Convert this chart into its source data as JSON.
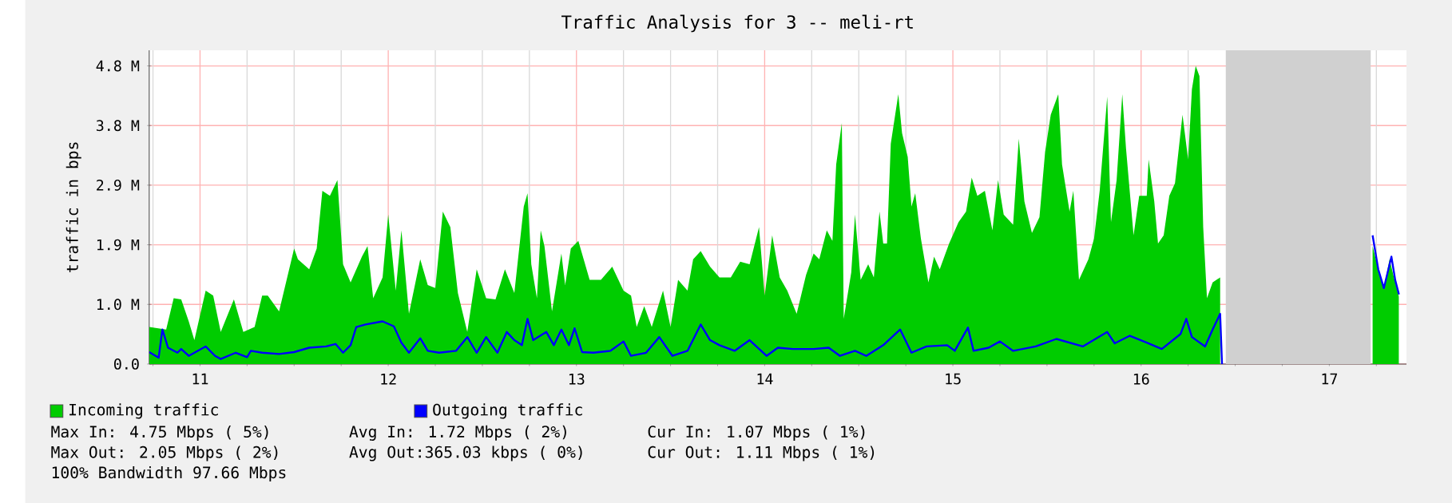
{
  "chart_data": {
    "type": "area",
    "title": "Traffic Analysis for 3 -- meli-rt",
    "ylabel": "traffic in bps",
    "xlim": [
      10.73,
      17.41
    ],
    "ylim": [
      0,
      5
    ],
    "xticks": [
      {
        "value": 10.75,
        "label": null
      },
      11,
      {
        "value": 11.25,
        "label": null
      },
      {
        "value": 11.5,
        "label": null
      },
      {
        "value": 11.75,
        "label": null
      },
      12,
      {
        "value": 12.25,
        "label": null
      },
      {
        "value": 12.5,
        "label": null
      },
      {
        "value": 12.75,
        "label": null
      },
      13,
      {
        "value": 13.25,
        "label": null
      },
      {
        "value": 13.5,
        "label": null
      },
      {
        "value": 13.75,
        "label": null
      },
      14,
      {
        "value": 14.25,
        "label": null
      },
      {
        "value": 14.5,
        "label": null
      },
      {
        "value": 14.75,
        "label": null
      },
      15,
      {
        "value": 15.25,
        "label": null
      },
      {
        "value": 15.5,
        "label": null
      },
      {
        "value": 15.75,
        "label": null
      },
      16,
      {
        "value": 16.25,
        "label": null
      },
      {
        "value": 16.5,
        "label": null
      },
      {
        "value": 16.75,
        "label": null
      },
      17,
      {
        "value": 17.25,
        "label": null
      }
    ],
    "yticks": [
      {
        "value": 0,
        "label": "0.0"
      },
      {
        "value": 0.95,
        "label": "1.0 M"
      },
      {
        "value": 1.9,
        "label": "1.9 M"
      },
      {
        "value": 2.85,
        "label": "2.9 M"
      },
      {
        "value": 3.8,
        "label": "3.8 M"
      },
      {
        "value": 4.75,
        "label": "4.8 M"
      }
    ],
    "grid": true,
    "legend": "bottom",
    "bands": [
      {
        "axis": "x",
        "from": 16.45,
        "to": 17.22,
        "color": "#d0d0d0"
      }
    ],
    "series": [
      {
        "name": "Incoming traffic",
        "color": "#00cc00",
        "x": [
          10.73,
          10.82,
          10.86,
          10.9,
          10.94,
          10.97,
          11.03,
          11.07,
          11.11,
          11.18,
          11.23,
          11.29,
          11.33,
          11.36,
          11.42,
          11.5,
          11.52,
          11.58,
          11.62,
          11.65,
          11.69,
          11.73,
          11.76,
          11.8,
          11.86,
          11.89,
          11.92,
          11.97,
          12.0,
          12.04,
          12.07,
          12.11,
          12.17,
          12.21,
          12.25,
          12.29,
          12.33,
          12.37,
          12.42,
          12.47,
          12.52,
          12.57,
          12.62,
          12.67,
          12.72,
          12.74,
          12.76,
          12.79,
          12.81,
          12.83,
          12.87,
          12.92,
          12.94,
          12.97,
          13.01,
          13.07,
          13.13,
          13.19,
          13.25,
          13.29,
          13.32,
          13.36,
          13.4,
          13.46,
          13.5,
          13.54,
          13.59,
          13.62,
          13.66,
          13.71,
          13.76,
          13.82,
          13.87,
          13.92,
          13.97,
          14.0,
          14.04,
          14.08,
          14.12,
          14.17,
          14.22,
          14.26,
          14.29,
          14.33,
          14.36,
          14.38,
          14.41,
          14.42,
          14.46,
          14.48,
          14.51,
          14.55,
          14.58,
          14.61,
          14.63,
          14.65,
          14.67,
          14.71,
          14.73,
          14.76,
          14.78,
          14.8,
          14.83,
          14.87,
          14.9,
          14.93,
          14.98,
          15.03,
          15.07,
          15.1,
          15.13,
          15.17,
          15.21,
          15.24,
          15.27,
          15.32,
          15.35,
          15.38,
          15.42,
          15.46,
          15.49,
          15.52,
          15.56,
          15.58,
          15.62,
          15.64,
          15.67,
          15.72,
          15.75,
          15.78,
          15.82,
          15.84,
          15.87,
          15.9,
          15.92,
          15.96,
          15.99,
          16.03,
          16.04,
          16.07,
          16.09,
          16.12,
          16.15,
          16.18,
          16.22,
          16.25,
          16.27,
          16.29,
          16.31,
          16.33,
          16.35,
          16.38,
          16.42,
          16.44,
          17.23,
          17.26,
          17.29,
          17.32,
          17.34,
          17.37
        ],
        "values": [
          0.59,
          0.55,
          1.05,
          1.03,
          0.68,
          0.38,
          1.17,
          1.09,
          0.51,
          1.03,
          0.51,
          0.59,
          1.09,
          1.09,
          0.84,
          1.84,
          1.67,
          1.51,
          1.84,
          2.76,
          2.68,
          2.93,
          1.59,
          1.3,
          1.71,
          1.88,
          1.05,
          1.38,
          2.38,
          1.17,
          2.13,
          0.8,
          1.67,
          1.26,
          1.21,
          2.43,
          2.18,
          1.13,
          0.51,
          1.51,
          1.05,
          1.03,
          1.51,
          1.13,
          2.51,
          2.72,
          1.59,
          1.05,
          2.13,
          1.88,
          0.84,
          1.76,
          1.26,
          1.84,
          1.96,
          1.34,
          1.34,
          1.55,
          1.17,
          1.09,
          0.59,
          0.92,
          0.59,
          1.17,
          0.59,
          1.34,
          1.17,
          1.67,
          1.8,
          1.55,
          1.38,
          1.38,
          1.63,
          1.59,
          2.18,
          1.09,
          2.05,
          1.38,
          1.17,
          0.8,
          1.42,
          1.76,
          1.67,
          2.13,
          1.96,
          3.18,
          3.84,
          0.72,
          1.46,
          2.38,
          1.34,
          1.59,
          1.38,
          2.43,
          1.92,
          1.92,
          3.51,
          4.3,
          3.68,
          3.3,
          2.51,
          2.72,
          2.0,
          1.3,
          1.71,
          1.51,
          1.92,
          2.26,
          2.43,
          2.97,
          2.68,
          2.76,
          2.13,
          2.93,
          2.38,
          2.22,
          3.59,
          2.59,
          2.09,
          2.34,
          3.38,
          3.97,
          4.3,
          3.18,
          2.43,
          2.76,
          1.34,
          1.67,
          2.0,
          2.76,
          4.26,
          2.26,
          2.93,
          4.3,
          3.43,
          2.05,
          2.68,
          2.68,
          3.26,
          2.59,
          1.92,
          2.05,
          2.68,
          2.88,
          3.97,
          3.26,
          4.38,
          4.75,
          4.59,
          2.18,
          1.05,
          1.3,
          1.38,
          null,
          1.88,
          1.51,
          1.21,
          1.67,
          1.42,
          1.07
        ]
      },
      {
        "name": "Outgoing traffic",
        "type": "line",
        "color": "#0000ff",
        "x": [
          10.73,
          10.78,
          10.8,
          10.83,
          10.88,
          10.9,
          10.94,
          11.03,
          11.08,
          11.11,
          11.19,
          11.25,
          11.27,
          11.33,
          11.42,
          11.5,
          11.58,
          11.67,
          11.72,
          11.76,
          11.8,
          11.83,
          11.88,
          11.97,
          12.03,
          12.07,
          12.11,
          12.17,
          12.21,
          12.27,
          12.36,
          12.42,
          12.47,
          12.52,
          12.58,
          12.63,
          12.67,
          12.71,
          12.74,
          12.77,
          12.84,
          12.88,
          12.92,
          12.96,
          12.99,
          13.03,
          13.09,
          13.18,
          13.25,
          13.29,
          13.37,
          13.44,
          13.51,
          13.59,
          13.66,
          13.71,
          13.76,
          13.84,
          13.92,
          14.01,
          14.07,
          14.15,
          14.26,
          14.34,
          14.4,
          14.48,
          14.54,
          14.63,
          14.72,
          14.78,
          14.86,
          14.97,
          15.01,
          15.08,
          15.11,
          15.19,
          15.25,
          15.32,
          15.44,
          15.55,
          15.69,
          15.82,
          15.86,
          15.94,
          16.03,
          16.11,
          16.21,
          16.24,
          16.27,
          16.34,
          16.38,
          16.42,
          16.43,
          16.44,
          17.23,
          17.26,
          17.29,
          17.33,
          17.35,
          17.37
        ],
        "values": [
          0.19,
          0.1,
          0.55,
          0.26,
          0.18,
          0.24,
          0.13,
          0.28,
          0.13,
          0.08,
          0.18,
          0.11,
          0.21,
          0.18,
          0.16,
          0.19,
          0.26,
          0.28,
          0.32,
          0.18,
          0.3,
          0.59,
          0.63,
          0.68,
          0.6,
          0.34,
          0.18,
          0.41,
          0.21,
          0.18,
          0.21,
          0.43,
          0.18,
          0.43,
          0.18,
          0.51,
          0.38,
          0.3,
          0.72,
          0.38,
          0.51,
          0.3,
          0.55,
          0.3,
          0.57,
          0.19,
          0.18,
          0.21,
          0.36,
          0.13,
          0.18,
          0.43,
          0.13,
          0.21,
          0.63,
          0.38,
          0.3,
          0.21,
          0.38,
          0.13,
          0.26,
          0.24,
          0.24,
          0.26,
          0.13,
          0.21,
          0.13,
          0.3,
          0.55,
          0.18,
          0.28,
          0.3,
          0.21,
          0.58,
          0.21,
          0.26,
          0.36,
          0.21,
          0.28,
          0.4,
          0.28,
          0.51,
          0.33,
          0.45,
          0.34,
          0.24,
          0.48,
          0.72,
          0.43,
          0.28,
          0.55,
          0.8,
          0.0,
          null,
          2.05,
          1.51,
          1.21,
          1.71,
          1.34,
          1.11
        ]
      }
    ],
    "annotations": [
      "Max In: 4.75 Mbps ( 5%)",
      "Avg In: 1.72 Mbps ( 2%)",
      "Cur In: 1.07 Mbps ( 1%)",
      "Max Out: 2.05 Mbps ( 2%)",
      "Avg Out:365.03 kbps ( 0%)",
      "Cur Out: 1.11 Mbps ( 1%)",
      "100% Bandwidth 97.66 Mbps"
    ]
  }
}
